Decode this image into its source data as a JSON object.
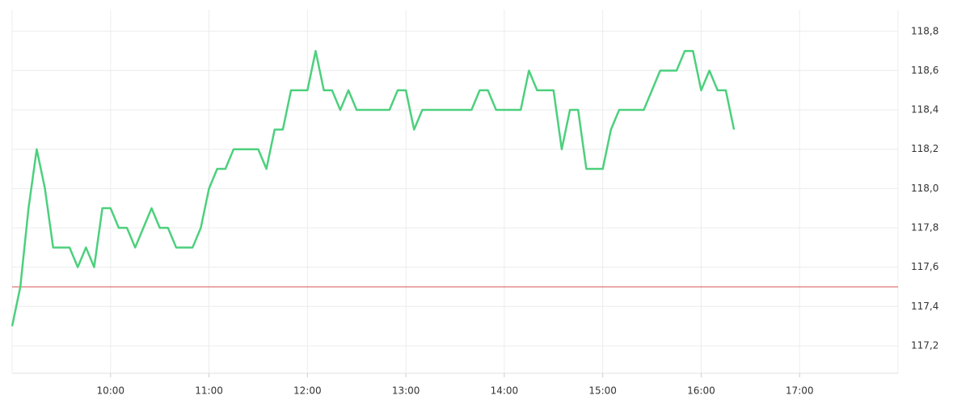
{
  "chart_data": {
    "type": "line",
    "x": [
      "09:00",
      "09:05",
      "09:10",
      "09:15",
      "09:20",
      "09:25",
      "09:30",
      "09:35",
      "09:40",
      "09:45",
      "09:50",
      "09:55",
      "10:00",
      "10:05",
      "10:10",
      "10:15",
      "10:20",
      "10:25",
      "10:30",
      "10:35",
      "10:40",
      "10:45",
      "10:50",
      "10:55",
      "11:00",
      "11:05",
      "11:10",
      "11:15",
      "11:20",
      "11:25",
      "11:30",
      "11:35",
      "11:40",
      "11:45",
      "11:50",
      "11:55",
      "12:00",
      "12:05",
      "12:10",
      "12:15",
      "12:20",
      "12:25",
      "12:30",
      "12:35",
      "12:40",
      "12:45",
      "12:50",
      "12:55",
      "13:00",
      "13:05",
      "13:10",
      "13:15",
      "13:20",
      "13:25",
      "13:30",
      "13:35",
      "13:40",
      "13:45",
      "13:50",
      "13:55",
      "14:00",
      "14:05",
      "14:10",
      "14:15",
      "14:20",
      "14:25",
      "14:30",
      "14:35",
      "14:40",
      "14:45",
      "14:50",
      "14:55",
      "15:00",
      "15:05",
      "15:10",
      "15:15",
      "15:20",
      "15:25",
      "15:30",
      "15:35",
      "15:40",
      "15:45",
      "15:50",
      "15:55",
      "16:00",
      "16:05",
      "16:10",
      "16:15",
      "16:20"
    ],
    "series": [
      {
        "color": "#4cd07d",
        "values": [
          117.3,
          117.5,
          117.9,
          118.2,
          118.0,
          117.7,
          117.7,
          117.7,
          117.6,
          117.7,
          117.6,
          117.9,
          117.9,
          117.8,
          117.8,
          117.7,
          117.8,
          117.9,
          117.8,
          117.8,
          117.7,
          117.7,
          117.7,
          117.8,
          118.0,
          118.1,
          118.1,
          118.2,
          118.2,
          118.2,
          118.2,
          118.1,
          118.3,
          118.3,
          118.5,
          118.5,
          118.5,
          118.7,
          118.5,
          118.5,
          118.4,
          118.5,
          118.4,
          118.4,
          118.4,
          118.4,
          118.4,
          118.5,
          118.5,
          118.3,
          118.4,
          118.4,
          118.4,
          118.4,
          118.4,
          118.4,
          118.4,
          118.5,
          118.5,
          118.4,
          118.4,
          118.4,
          118.4,
          118.6,
          118.5,
          118.5,
          118.5,
          118.2,
          118.4,
          118.4,
          118.1,
          118.1,
          118.1,
          118.3,
          118.4,
          118.4,
          118.4,
          118.4,
          118.5,
          118.6,
          118.6,
          118.6,
          118.7,
          118.7,
          118.5,
          118.6,
          118.5,
          118.5,
          118.3
        ]
      }
    ],
    "reference_line": {
      "value": 117.5,
      "color": "#d9534f"
    },
    "xlim": [
      "09:00",
      "18:00"
    ],
    "xticks": [
      "10:00",
      "11:00",
      "12:00",
      "13:00",
      "14:00",
      "15:00",
      "16:00",
      "17:00"
    ],
    "ylim": [
      117.06,
      118.91
    ],
    "yticks": [
      {
        "value": 117.2,
        "label": "117,2"
      },
      {
        "value": 117.4,
        "label": "117,4"
      },
      {
        "value": 117.6,
        "label": "117,6"
      },
      {
        "value": 117.8,
        "label": "117,8"
      },
      {
        "value": 118.0,
        "label": "118,0"
      },
      {
        "value": 118.2,
        "label": "118,2"
      },
      {
        "value": 118.4,
        "label": "118,4"
      },
      {
        "value": 118.6,
        "label": "118,6"
      },
      {
        "value": 118.8,
        "label": "118,8"
      }
    ],
    "grid": true
  }
}
